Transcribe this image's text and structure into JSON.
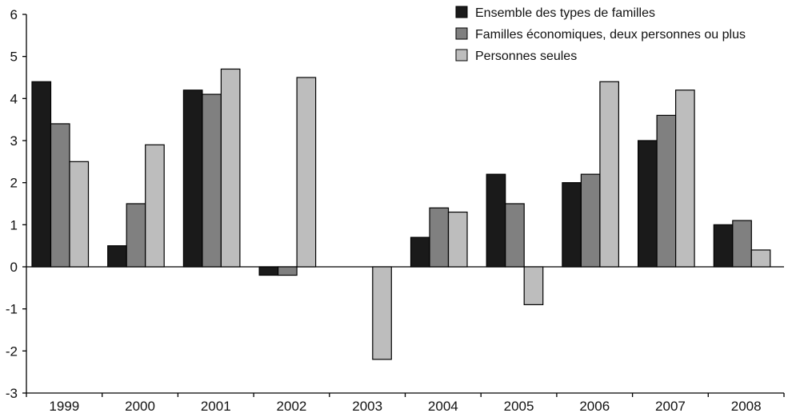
{
  "chart_data": {
    "type": "bar",
    "title": "",
    "xlabel": "",
    "ylabel": "",
    "ylim": [
      -3,
      6
    ],
    "yticks": [
      6,
      5,
      4,
      3,
      2,
      1,
      0,
      -1,
      -2,
      -3
    ],
    "categories": [
      "1999",
      "2000",
      "2001",
      "2002",
      "2003",
      "2004",
      "2005",
      "2006",
      "2007",
      "2008"
    ],
    "series": [
      {
        "name": "Ensemble des types de familles",
        "color": "#1a1a1a",
        "values": [
          4.4,
          0.5,
          4.2,
          -0.2,
          0.0,
          0.7,
          2.2,
          2.0,
          3.0,
          1.0
        ]
      },
      {
        "name": "Familles économiques, deux personnes ou plus",
        "color": "#808080",
        "values": [
          3.4,
          1.5,
          4.1,
          -0.2,
          0.0,
          1.4,
          1.5,
          2.2,
          3.6,
          1.1
        ]
      },
      {
        "name": "Personnes seules",
        "color": "#bdbdbd",
        "values": [
          2.5,
          2.9,
          4.7,
          4.5,
          -2.2,
          1.3,
          -0.9,
          4.4,
          4.2,
          0.4
        ]
      }
    ],
    "grid": false,
    "legend_position": "top-right"
  }
}
